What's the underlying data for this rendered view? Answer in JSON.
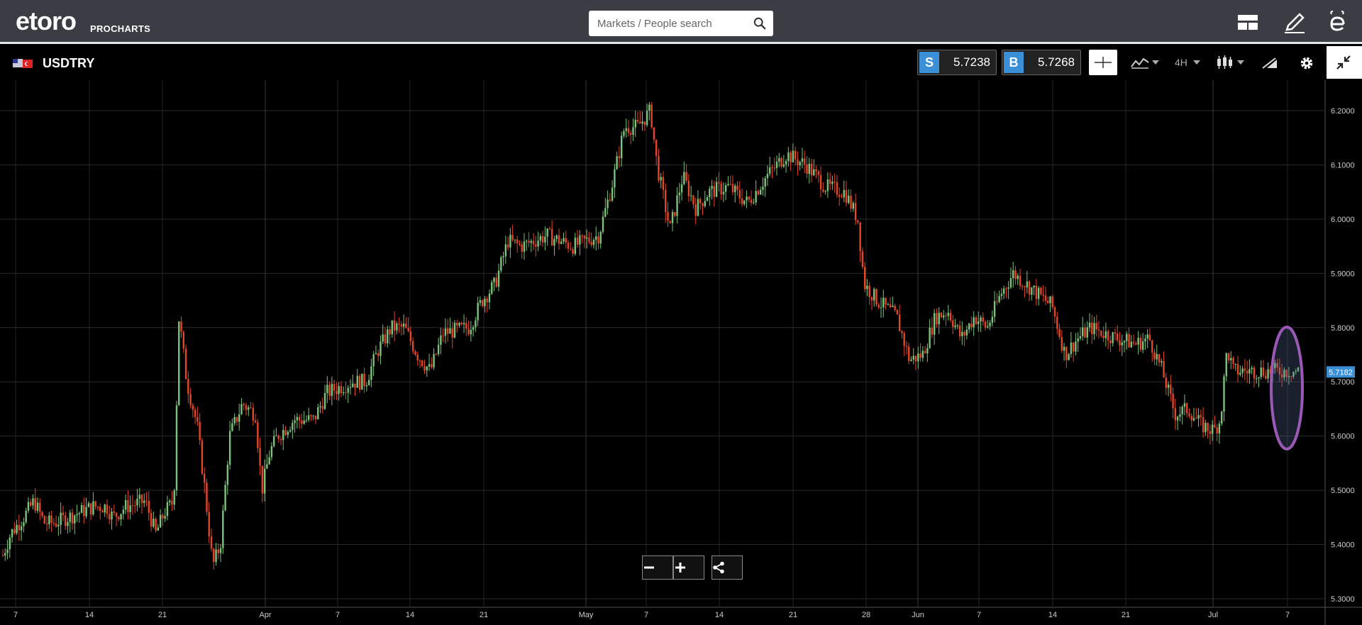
{
  "header": {
    "logo_text": "etoro",
    "sub_logo": "PROCHARTS",
    "search_placeholder": "Markets / People search"
  },
  "instrument": {
    "symbol": "USDTRY",
    "sell_label": "S",
    "sell_price": "5.7238",
    "buy_label": "B",
    "buy_price": "5.7268",
    "timeframe": "4H"
  },
  "chart_data": {
    "type": "candlestick",
    "instrument": "USDTRY",
    "y_ticks": [
      "6.2000",
      "6.1000",
      "6.0000",
      "5.9000",
      "5.8000",
      "5.7000",
      "5.6000",
      "5.5000",
      "5.4000",
      "5.3000"
    ],
    "ylim": [
      5.3,
      6.2
    ],
    "current_price_label": "5.7182",
    "x_ticks": [
      "7",
      "14",
      "21",
      "Apr",
      "7",
      "14",
      "21",
      "May",
      "7",
      "14",
      "21",
      "28",
      "Jun",
      "7",
      "14",
      "21",
      "Jul",
      "7"
    ],
    "grid": true,
    "path": [
      [
        0,
        5.38
      ],
      [
        0.006,
        5.42
      ],
      [
        0.016,
        5.45
      ],
      [
        0.024,
        5.48
      ],
      [
        0.032,
        5.44
      ],
      [
        0.04,
        5.44
      ],
      [
        0.05,
        5.45
      ],
      [
        0.06,
        5.46
      ],
      [
        0.07,
        5.47
      ],
      [
        0.08,
        5.47
      ],
      [
        0.085,
        5.45
      ],
      [
        0.095,
        5.47
      ],
      [
        0.11,
        5.48
      ],
      [
        0.118,
        5.42
      ],
      [
        0.125,
        5.46
      ],
      [
        0.132,
        5.48
      ],
      [
        0.136,
        5.82
      ],
      [
        0.142,
        5.7
      ],
      [
        0.15,
        5.62
      ],
      [
        0.156,
        5.5
      ],
      [
        0.162,
        5.36
      ],
      [
        0.168,
        5.4
      ],
      [
        0.175,
        5.6
      ],
      [
        0.185,
        5.66
      ],
      [
        0.195,
        5.64
      ],
      [
        0.2,
        5.5
      ],
      [
        0.206,
        5.57
      ],
      [
        0.212,
        5.6
      ],
      [
        0.225,
        5.63
      ],
      [
        0.24,
        5.63
      ],
      [
        0.25,
        5.68
      ],
      [
        0.27,
        5.7
      ],
      [
        0.28,
        5.7
      ],
      [
        0.29,
        5.76
      ],
      [
        0.3,
        5.8
      ],
      [
        0.31,
        5.8
      ],
      [
        0.32,
        5.75
      ],
      [
        0.33,
        5.72
      ],
      [
        0.34,
        5.79
      ],
      [
        0.36,
        5.8
      ],
      [
        0.37,
        5.85
      ],
      [
        0.38,
        5.88
      ],
      [
        0.39,
        5.96
      ],
      [
        0.4,
        5.95
      ],
      [
        0.42,
        5.97
      ],
      [
        0.44,
        5.95
      ],
      [
        0.46,
        5.97
      ],
      [
        0.47,
        6.06
      ],
      [
        0.48,
        6.17
      ],
      [
        0.49,
        6.17
      ],
      [
        0.5,
        6.2
      ],
      [
        0.505,
        6.1
      ],
      [
        0.515,
        5.98
      ],
      [
        0.525,
        6.08
      ],
      [
        0.535,
        6.02
      ],
      [
        0.545,
        6.05
      ],
      [
        0.56,
        6.06
      ],
      [
        0.575,
        6.03
      ],
      [
        0.59,
        6.08
      ],
      [
        0.605,
        6.12
      ],
      [
        0.62,
        6.1
      ],
      [
        0.635,
        6.06
      ],
      [
        0.65,
        6.05
      ],
      [
        0.66,
        6.0
      ],
      [
        0.665,
        5.88
      ],
      [
        0.675,
        5.85
      ],
      [
        0.69,
        5.82
      ],
      [
        0.7,
        5.74
      ],
      [
        0.71,
        5.75
      ],
      [
        0.72,
        5.82
      ],
      [
        0.73,
        5.83
      ],
      [
        0.74,
        5.78
      ],
      [
        0.75,
        5.82
      ],
      [
        0.76,
        5.8
      ],
      [
        0.77,
        5.86
      ],
      [
        0.78,
        5.9
      ],
      [
        0.79,
        5.88
      ],
      [
        0.8,
        5.86
      ],
      [
        0.81,
        5.84
      ],
      [
        0.82,
        5.75
      ],
      [
        0.83,
        5.78
      ],
      [
        0.84,
        5.8
      ],
      [
        0.85,
        5.79
      ],
      [
        0.86,
        5.78
      ],
      [
        0.875,
        5.77
      ],
      [
        0.885,
        5.78
      ],
      [
        0.895,
        5.72
      ],
      [
        0.905,
        5.64
      ],
      [
        0.915,
        5.65
      ],
      [
        0.925,
        5.62
      ],
      [
        0.935,
        5.61
      ],
      [
        0.94,
        5.63
      ],
      [
        0.945,
        5.76
      ],
      [
        0.95,
        5.72
      ]
    ]
  },
  "annotation": {
    "ellipse_color": "#9b59b6"
  },
  "colors": {
    "up": "#7cc47c",
    "down": "#e4462a",
    "accent": "#3a8fd6"
  }
}
